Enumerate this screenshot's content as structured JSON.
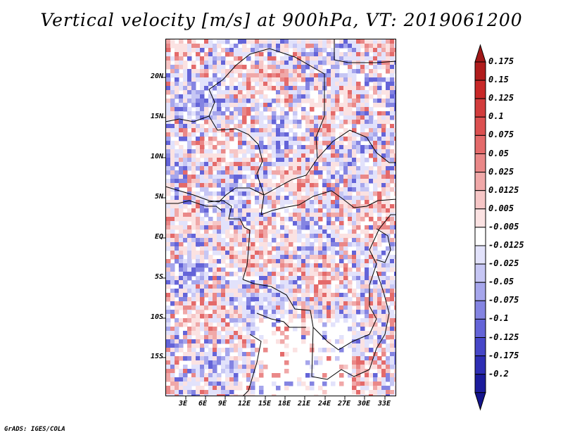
{
  "title": "Vertical velocity [m/s] at 900hPa, VT: 2019061200",
  "credit": "GrADS: IGES/COLA",
  "map": {
    "lat_labels": [
      "20N",
      "15N",
      "10N",
      "5N",
      "EQ",
      "5S",
      "10S",
      "15S"
    ],
    "lon_labels": [
      "3E",
      "6E",
      "9E",
      "12E",
      "15E",
      "18E",
      "21E",
      "24E",
      "27E",
      "30E",
      "33E"
    ]
  },
  "colorbar": {
    "labels": [
      "0.175",
      "0.15",
      "0.125",
      "0.1",
      "0.075",
      "0.05",
      "0.025",
      "0.0125",
      "0.005",
      "-0.005",
      "-0.0125",
      "-0.025",
      "-0.05",
      "-0.075",
      "-0.1",
      "-0.125",
      "-0.175",
      "-0.2"
    ],
    "colors": [
      "#b01c1c",
      "#c82828",
      "#d23c3c",
      "#dc5050",
      "#e46a6a",
      "#ea8888",
      "#f0a8a8",
      "#f6c6c6",
      "#fbe2e2",
      "#ffffff",
      "#e2e2fb",
      "#c6c6f4",
      "#a6a6ec",
      "#8484e2",
      "#6464d8",
      "#4646c8",
      "#2e2eb4",
      "#1c1c9c"
    ],
    "top_color": "#a01818",
    "bottom_color": "#14148c"
  }
}
